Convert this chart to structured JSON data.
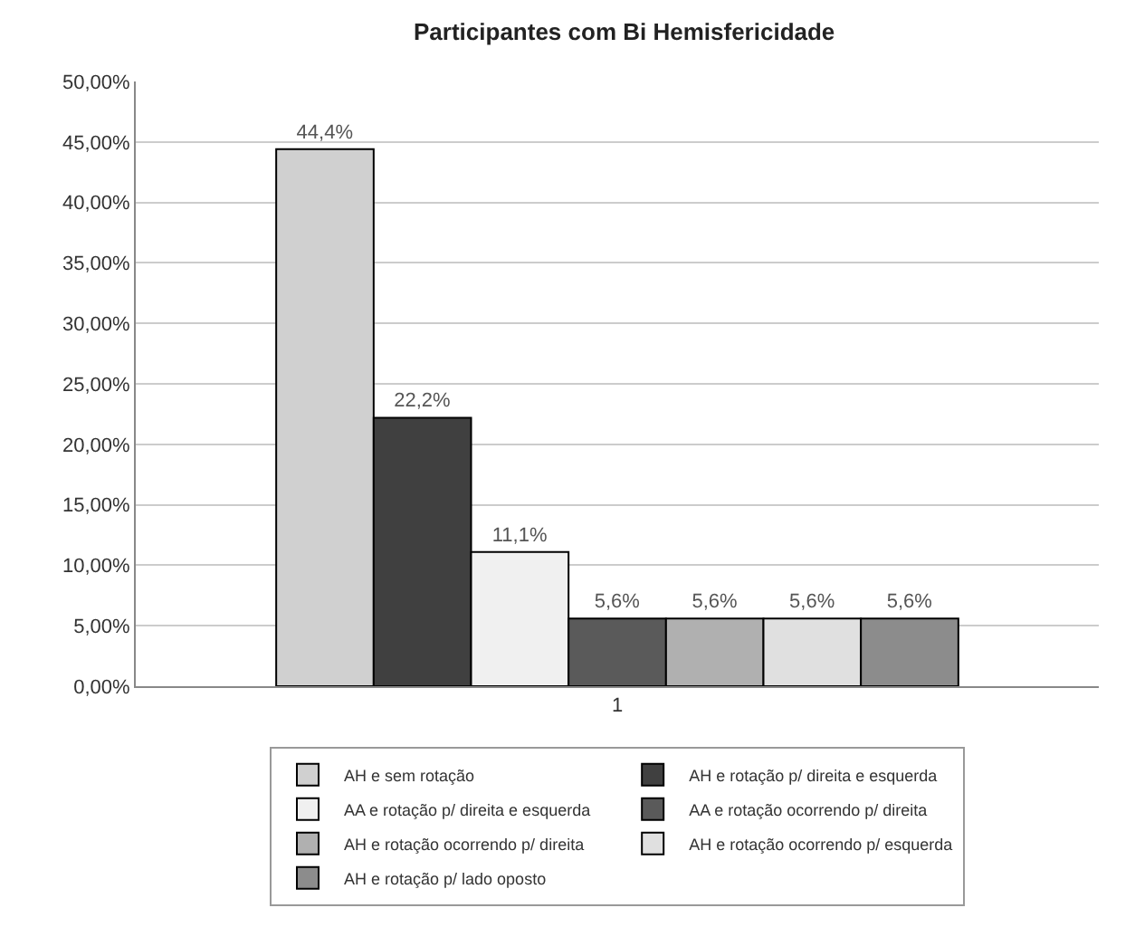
{
  "chart_data": {
    "type": "bar",
    "title": "Participantes com Bi Hemisfericidade",
    "categories": [
      "1"
    ],
    "series": [
      {
        "name": "AH e sem rotação",
        "color": "#d0d0d0",
        "values": [
          44.4
        ],
        "value_labels": [
          "44,4%"
        ]
      },
      {
        "name": "AH e rotação p/ direita e esquerda",
        "color": "#404040",
        "values": [
          22.2
        ],
        "value_labels": [
          "22,2%"
        ]
      },
      {
        "name": "AA e rotação p/ direita e esquerda",
        "color": "#f0f0f0",
        "values": [
          11.1
        ],
        "value_labels": [
          "11,1%"
        ]
      },
      {
        "name": "AA e rotação ocorrendo p/ direita",
        "color": "#5a5a5a",
        "values": [
          5.6
        ],
        "value_labels": [
          "5,6%"
        ]
      },
      {
        "name": "AH e rotação ocorrendo p/ direita",
        "color": "#b0b0b0",
        "values": [
          5.6
        ],
        "value_labels": [
          "5,6%"
        ]
      },
      {
        "name": "AH e rotação ocorrendo p/ esquerda",
        "color": "#e0e0e0",
        "values": [
          5.6
        ],
        "value_labels": [
          "5,6%"
        ]
      },
      {
        "name": "AH e rotação p/ lado oposto",
        "color": "#8c8c8c",
        "values": [
          5.6
        ],
        "value_labels": [
          "5,6%"
        ]
      }
    ],
    "ylim": [
      0,
      50
    ],
    "yticks": [
      {
        "value": 0,
        "label": "0,00%"
      },
      {
        "value": 5,
        "label": "5,00%"
      },
      {
        "value": 10,
        "label": "10,00%"
      },
      {
        "value": 15,
        "label": "15,00%"
      },
      {
        "value": 20,
        "label": "20,00%"
      },
      {
        "value": 25,
        "label": "25,00%"
      },
      {
        "value": 30,
        "label": "30,00%"
      },
      {
        "value": 35,
        "label": "35,00%"
      },
      {
        "value": 40,
        "label": "40,00%"
      },
      {
        "value": 45,
        "label": "45,00%"
      },
      {
        "value": 50,
        "label": "50,00%"
      }
    ],
    "grid": "y",
    "legend": "bottom"
  }
}
